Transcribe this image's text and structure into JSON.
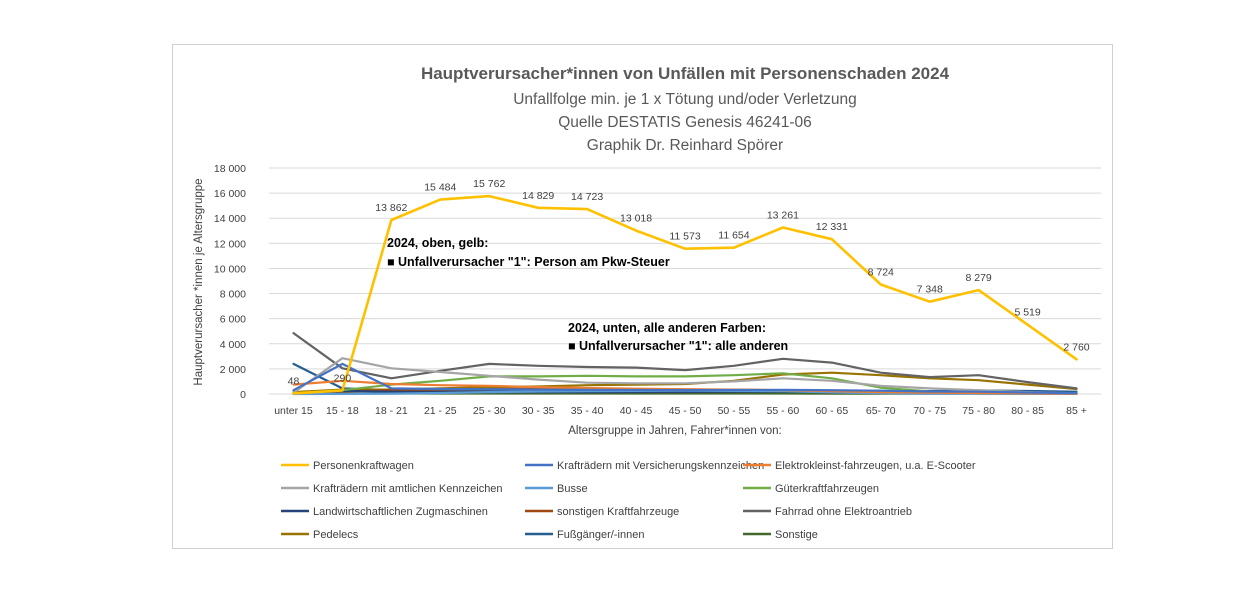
{
  "chart_data": {
    "type": "line",
    "title": "Hauptverursacher*innen von Unfällen mit Personenschaden 2024",
    "subtitles": [
      "Unfallfolge min. je 1 x Tötung und/oder Verletzung",
      "Quelle DESTATIS Genesis 46241-06",
      "Graphik Dr. Reinhard Spörer"
    ],
    "xlabel": "Altersgruppe in Jahren, Fahrer*innen von:",
    "ylabel": "Hauptverursacher *innen je Altersgruppe",
    "ylim": [
      0,
      18000
    ],
    "yticks": [
      0,
      2000,
      4000,
      6000,
      8000,
      10000,
      12000,
      14000,
      16000,
      18000
    ],
    "ytick_labels": [
      "0",
      "2 000",
      "4 000",
      "6 000",
      "8 000",
      "10 000",
      "12 000",
      "14 000",
      "16 000",
      "18 000"
    ],
    "grid": true,
    "legend_position": "bottom",
    "categories": [
      "unter 15",
      "15 - 18",
      "18 - 21",
      "21 - 25",
      "25 - 30",
      "30 - 35",
      "35 - 40",
      "40 - 45",
      "45 - 50",
      "50 - 55",
      "55 - 60",
      "60 - 65",
      "65- 70",
      "70 - 75",
      "75 - 80",
      "80 - 85",
      "85 +"
    ],
    "series": [
      {
        "name": "Personenkraftwagen",
        "color": "#FFC000",
        "values": [
          48,
          290,
          13862,
          15484,
          15762,
          14829,
          14723,
          13018,
          11573,
          11654,
          13261,
          12331,
          8724,
          7348,
          8279,
          5519,
          2760
        ],
        "labels": [
          "48",
          "290",
          "13 862",
          "15 484",
          "15 762",
          "14 829",
          "14 723",
          "13 018",
          "11 573",
          "11 654",
          "13 261",
          "12 331",
          "8 724",
          "7 348",
          "8 279",
          "5 519",
          "2 760"
        ]
      },
      {
        "name": "Krafträdern mit Versicherungskennzeichen",
        "color": "#4472C4",
        "values": [
          300,
          2400,
          450,
          400,
          380,
          350,
          330,
          320,
          310,
          320,
          330,
          300,
          260,
          200,
          180,
          120,
          60
        ]
      },
      {
        "name": "Elektrokleinst-fahrzeugen, u.a. E-Scooter",
        "color": "#ED7D31",
        "values": [
          750,
          1050,
          800,
          700,
          650,
          550,
          480,
          420,
          380,
          350,
          300,
          220,
          150,
          100,
          80,
          50,
          30
        ]
      },
      {
        "name": "Krafträdern mit amtlichen Kennzeichen",
        "color": "#A5A5A5",
        "values": [
          100,
          2850,
          2050,
          1750,
          1450,
          1150,
          900,
          850,
          850,
          1000,
          1250,
          1050,
          650,
          450,
          300,
          150,
          50
        ]
      },
      {
        "name": "Busse",
        "color": "#5B9BD5",
        "values": [
          0,
          10,
          30,
          80,
          150,
          200,
          230,
          250,
          260,
          250,
          220,
          130,
          60,
          30,
          20,
          10,
          5
        ]
      },
      {
        "name": "Güterkraftfahrzeugen",
        "color": "#70AD47",
        "values": [
          50,
          300,
          750,
          1050,
          1400,
          1400,
          1450,
          1400,
          1400,
          1500,
          1650,
          1250,
          500,
          200,
          100,
          50,
          20
        ]
      },
      {
        "name": "Landwirtschaftlichen Zugmaschinen",
        "color": "#264478",
        "values": [
          20,
          250,
          180,
          150,
          140,
          140,
          150,
          160,
          170,
          180,
          190,
          170,
          130,
          110,
          90,
          60,
          30
        ]
      },
      {
        "name": "sonstigen Kraftfahrzeuge",
        "color": "#9E480E",
        "values": [
          50,
          200,
          300,
          350,
          380,
          400,
          400,
          380,
          360,
          340,
          300,
          250,
          200,
          150,
          100,
          60,
          30
        ]
      },
      {
        "name": "Fahrrad ohne Elektroantrieb",
        "color": "#636363",
        "values": [
          4850,
          2050,
          1250,
          1850,
          2400,
          2250,
          2150,
          2100,
          1900,
          2250,
          2800,
          2500,
          1700,
          1350,
          1500,
          950,
          450
        ]
      },
      {
        "name": "Pedelecs",
        "color": "#997300",
        "values": [
          150,
          350,
          350,
          450,
          550,
          600,
          700,
          750,
          800,
          1050,
          1550,
          1700,
          1500,
          1250,
          1100,
          750,
          400
        ]
      },
      {
        "name": "Fußgänger/-innen",
        "color": "#255E91",
        "values": [
          2400,
          450,
          300,
          280,
          250,
          250,
          240,
          230,
          240,
          250,
          280,
          260,
          250,
          230,
          280,
          240,
          180
        ]
      },
      {
        "name": "Sonstige",
        "color": "#43682B",
        "values": [
          30,
          40,
          40,
          40,
          40,
          40,
          40,
          40,
          40,
          40,
          40,
          35,
          30,
          25,
          20,
          15,
          10
        ]
      }
    ],
    "annotations": [
      {
        "lines": [
          "2024, oben, gelb:",
          "■ Unfallverursacher \"1\":  Person am Pkw-Steuer"
        ]
      },
      {
        "lines": [
          "2024, unten, alle anderen Farben:",
          "■ Unfallverursacher \"1\":  alle anderen"
        ]
      }
    ]
  }
}
